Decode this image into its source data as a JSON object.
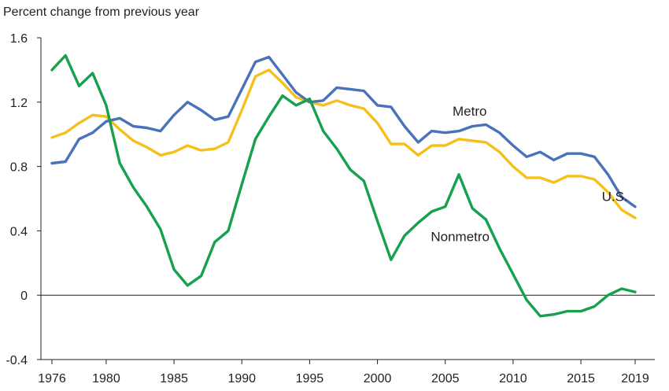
{
  "chart_data": {
    "type": "line",
    "title": "",
    "ylabel": "Percent change from previous year",
    "xlabel": "",
    "ylim": [
      -0.4,
      1.6
    ],
    "xlim": [
      1976,
      2019
    ],
    "yticks": [
      -0.4,
      0,
      0.4,
      0.8,
      1.2,
      1.6
    ],
    "ytick_labels": [
      "-0.4",
      "0",
      "0.4",
      "0.8",
      "1.2",
      "1.6"
    ],
    "xticks": [
      1976,
      1980,
      1985,
      1990,
      1995,
      2000,
      2005,
      2010,
      2015,
      2019
    ],
    "xtick_labels": [
      "1976",
      "1980",
      "1985",
      "1990",
      "1995",
      "2000",
      "2005",
      "2010",
      "2015",
      "2019"
    ],
    "grid": false,
    "zero_line": true,
    "series": [
      {
        "name": "Metro",
        "color": "#4a72b8",
        "x": [
          1976,
          1977,
          1978,
          1979,
          1980,
          1981,
          1982,
          1983,
          1984,
          1985,
          1986,
          1987,
          1988,
          1989,
          1990,
          1991,
          1992,
          1993,
          1994,
          1995,
          1996,
          1997,
          1998,
          1999,
          2000,
          2001,
          2002,
          2003,
          2004,
          2005,
          2006,
          2007,
          2008,
          2009,
          2010,
          2011,
          2012,
          2013,
          2014,
          2015,
          2016,
          2017,
          2018,
          2019
        ],
        "values": [
          0.82,
          0.83,
          0.97,
          1.01,
          1.08,
          1.1,
          1.05,
          1.04,
          1.02,
          1.12,
          1.2,
          1.15,
          1.09,
          1.11,
          1.28,
          1.45,
          1.48,
          1.37,
          1.26,
          1.2,
          1.21,
          1.29,
          1.28,
          1.27,
          1.18,
          1.17,
          1.05,
          0.95,
          1.02,
          1.01,
          1.02,
          1.05,
          1.06,
          1.01,
          0.93,
          0.86,
          0.89,
          0.84,
          0.88,
          0.88,
          0.86,
          0.75,
          0.61,
          0.55
        ]
      },
      {
        "name": "U.S.",
        "color": "#f5c01a",
        "x": [
          1976,
          1977,
          1978,
          1979,
          1980,
          1981,
          1982,
          1983,
          1984,
          1985,
          1986,
          1987,
          1988,
          1989,
          1990,
          1991,
          1992,
          1993,
          1994,
          1995,
          1996,
          1997,
          1998,
          1999,
          2000,
          2001,
          2002,
          2003,
          2004,
          2005,
          2006,
          2007,
          2008,
          2009,
          2010,
          2011,
          2012,
          2013,
          2014,
          2015,
          2016,
          2017,
          2018,
          2019
        ],
        "values": [
          0.98,
          1.01,
          1.07,
          1.12,
          1.11,
          1.03,
          0.96,
          0.92,
          0.87,
          0.89,
          0.93,
          0.9,
          0.91,
          0.95,
          1.15,
          1.36,
          1.4,
          1.32,
          1.23,
          1.2,
          1.18,
          1.21,
          1.18,
          1.16,
          1.07,
          0.94,
          0.94,
          0.87,
          0.93,
          0.93,
          0.97,
          0.96,
          0.95,
          0.89,
          0.8,
          0.73,
          0.73,
          0.7,
          0.74,
          0.74,
          0.72,
          0.64,
          0.53,
          0.48
        ]
      },
      {
        "name": "Nonmetro",
        "color": "#17a04e",
        "x": [
          1976,
          1977,
          1978,
          1979,
          1980,
          1981,
          1982,
          1983,
          1984,
          1985,
          1986,
          1987,
          1988,
          1989,
          1990,
          1991,
          1992,
          1993,
          1994,
          1995,
          1996,
          1997,
          1998,
          1999,
          2000,
          2001,
          2002,
          2003,
          2004,
          2005,
          2006,
          2007,
          2008,
          2009,
          2010,
          2011,
          2012,
          2013,
          2014,
          2015,
          2016,
          2017,
          2018,
          2019
        ],
        "values": [
          1.4,
          1.49,
          1.3,
          1.38,
          1.18,
          0.82,
          0.67,
          0.55,
          0.41,
          0.16,
          0.06,
          0.12,
          0.33,
          0.4,
          0.69,
          0.97,
          1.11,
          1.24,
          1.18,
          1.22,
          1.02,
          0.91,
          0.78,
          0.71,
          0.46,
          0.22,
          0.37,
          0.45,
          0.52,
          0.55,
          0.75,
          0.54,
          0.47,
          0.29,
          0.13,
          -0.03,
          -0.13,
          -0.12,
          -0.1,
          -0.1,
          -0.07,
          0.0,
          0.04,
          0.02
        ]
      }
    ],
    "series_labels": [
      {
        "text": "Metro",
        "x": 2006.8,
        "y": 1.115,
        "anchor": "middle"
      },
      {
        "text": "U.S.",
        "x": 2017.5,
        "y": 0.585,
        "anchor": "middle"
      },
      {
        "text": "Nonmetro",
        "x": 2006.1,
        "y": 0.335,
        "anchor": "middle"
      }
    ]
  }
}
